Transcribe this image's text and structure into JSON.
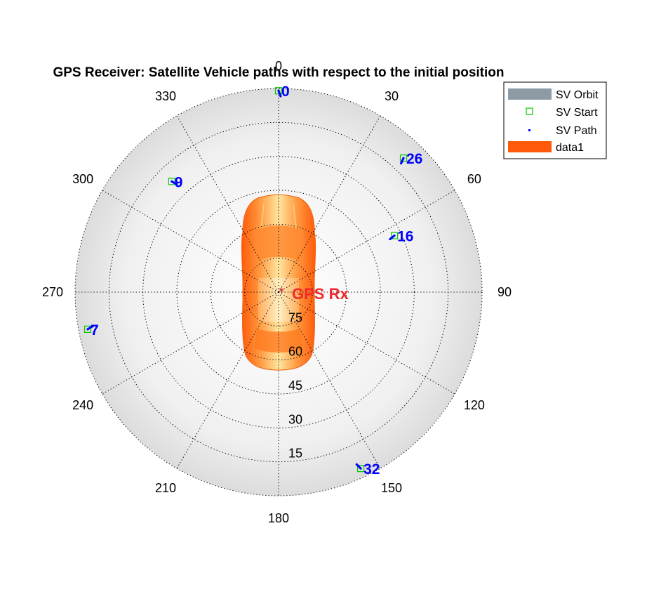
{
  "chart_data": {
    "type": "scatter",
    "coordinate_system": "polar (azimuth clockwise from north, radius = elevation angle, 90 at center)",
    "title": "GPS Receiver: Satellite Vehicle paths with respect to the initial position",
    "azimuth_ticks": [
      "0",
      "30",
      "60",
      "90",
      "120",
      "150",
      "180",
      "210",
      "240",
      "270",
      "300",
      "330"
    ],
    "elevation_ticks": [
      "15",
      "30",
      "45",
      "60",
      "75"
    ],
    "elevation_range": [
      0,
      90
    ],
    "grid": true,
    "legend": {
      "placement": "top-right",
      "entries": [
        {
          "label": "SV Orbit",
          "color": "#8c9ba5"
        },
        {
          "label": "SV Start",
          "color": "#00c800"
        },
        {
          "label": "SV Path",
          "color": "#0000ff"
        },
        {
          "label": "data1",
          "color": "#ff5a0a"
        }
      ]
    },
    "receiver": {
      "label": "GPS Rx",
      "marker_color": "#c81e1e",
      "label_color": "#f0282d"
    },
    "satellites": [
      {
        "id": "0",
        "azimuth": 0,
        "elevation": 1
      },
      {
        "id": "26",
        "azimuth": 43,
        "elevation": 9
      },
      {
        "id": "16",
        "azimuth": 64,
        "elevation": 33
      },
      {
        "id": "9",
        "azimuth": 316,
        "elevation": 22
      },
      {
        "id": "7",
        "azimuth": 259,
        "elevation": 4
      },
      {
        "id": "32",
        "azimuth": 155,
        "elevation": 4
      }
    ],
    "colors": {
      "sv_label": "#0000ff",
      "sv_start": "#00c800",
      "sv_path": "#0000ff",
      "car": "#ff5a0a"
    }
  }
}
